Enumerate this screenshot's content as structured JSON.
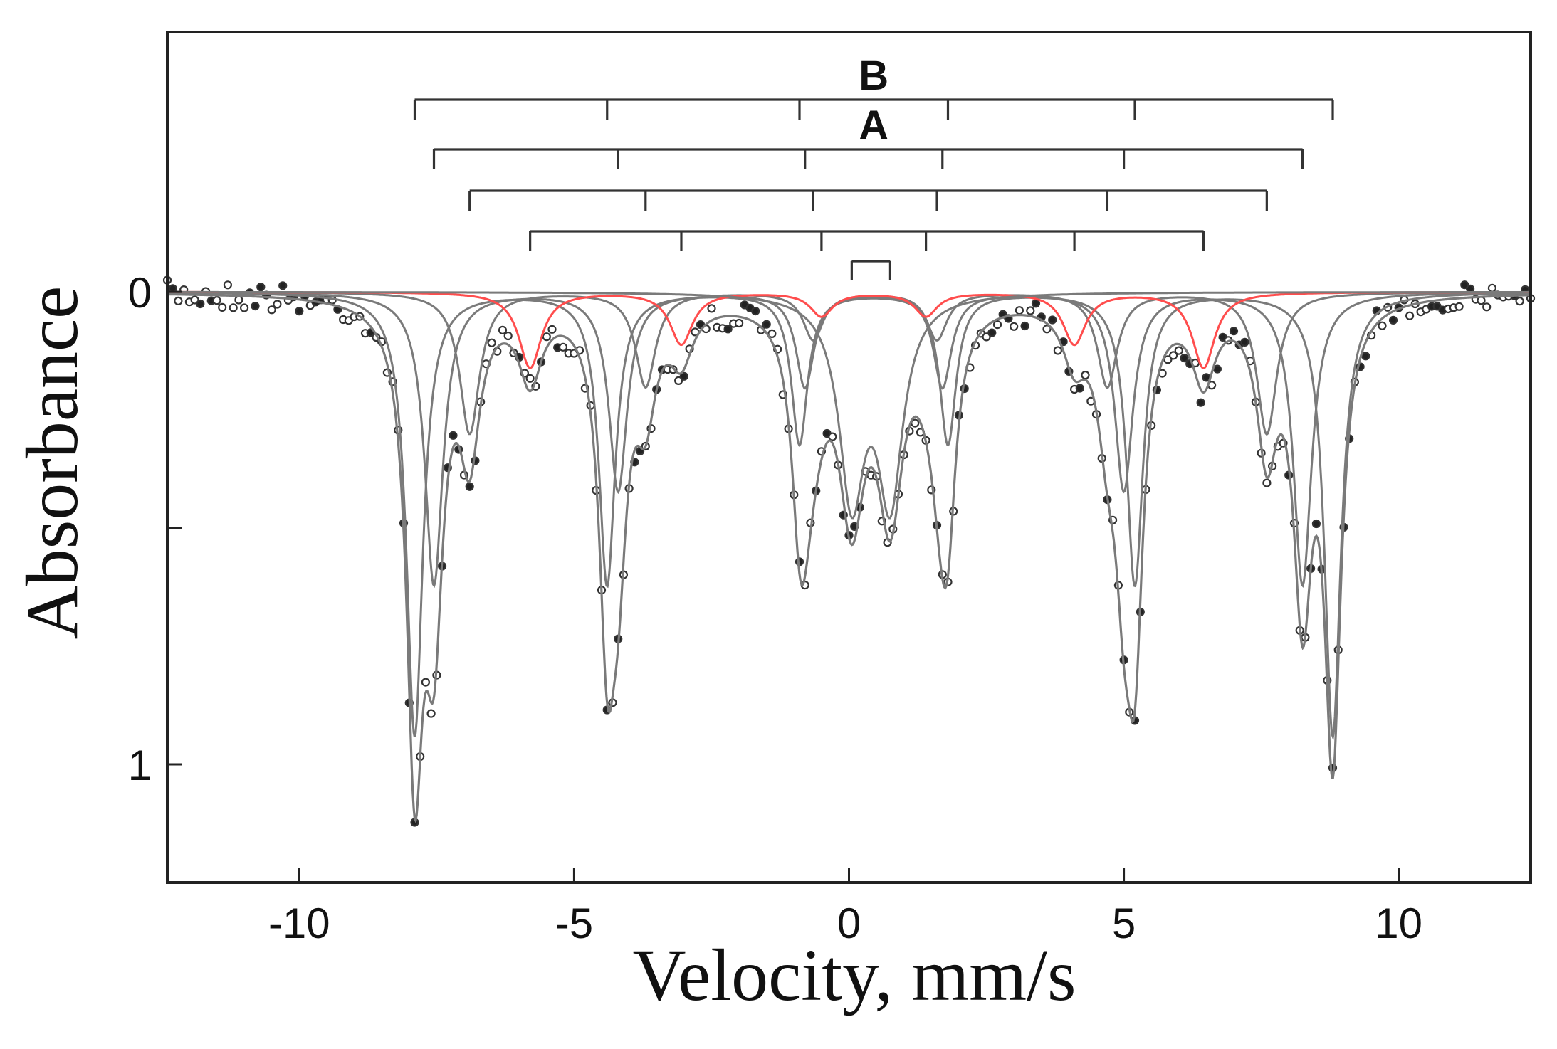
{
  "chart_data": {
    "type": "line",
    "title": "",
    "xlabel": "Velocity, mm/s",
    "ylabel": "Absorbance",
    "xlim": [
      -12.4,
      12.4
    ],
    "ylim": [
      -0.55,
      1.25
    ],
    "y_inverted": true,
    "x_ticks": [
      -10,
      -5,
      0,
      5,
      10
    ],
    "x_tick_labels": [
      "-10",
      "-5",
      "0",
      "5",
      "10"
    ],
    "y_ticks": [
      0,
      0.5,
      1
    ],
    "y_tick_labels": [
      "0",
      "",
      "1"
    ],
    "grid": false,
    "legend": "none",
    "colors": {
      "fit": "#7a7a7a",
      "doublet_fit": "#ff4d4d",
      "data": "#333333",
      "frame": "#222222"
    },
    "sextet_sticks": [
      {
        "name": "B",
        "label_at": 0.5,
        "lines": [
          -7.9,
          -4.4,
          -0.9,
          1.8,
          5.2,
          8.8
        ]
      },
      {
        "name": "A",
        "label_at": 0.5,
        "lines": [
          -7.55,
          -4.2,
          -0.8,
          1.7,
          5.0,
          8.25
        ]
      },
      {
        "name": "",
        "label_at": null,
        "lines": [
          -6.9,
          -3.7,
          -0.65,
          1.6,
          4.7,
          7.6
        ]
      },
      {
        "name": "",
        "label_at": null,
        "lines": [
          -5.8,
          -3.05,
          -0.5,
          1.4,
          4.1,
          6.45
        ]
      }
    ],
    "doublet_stick": [
      0.05,
      0.75
    ],
    "components": [
      {
        "kind": "sextet",
        "centers": [
          -7.9,
          -4.4,
          -0.9,
          1.8,
          5.2,
          8.8
        ],
        "depths": [
          0.94,
          0.62,
          0.32,
          0.32,
          0.62,
          0.94
        ],
        "hwhm": 0.18,
        "color_key": "fit"
      },
      {
        "kind": "sextet",
        "centers": [
          -7.55,
          -4.2,
          -0.8,
          1.7,
          5.0,
          8.25
        ],
        "depths": [
          0.62,
          0.42,
          0.2,
          0.2,
          0.42,
          0.62
        ],
        "hwhm": 0.2,
        "color_key": "fit"
      },
      {
        "kind": "sextet",
        "centers": [
          -6.9,
          -3.7,
          -0.65,
          1.6,
          4.7,
          7.6
        ],
        "depths": [
          0.3,
          0.2,
          0.1,
          0.1,
          0.2,
          0.3
        ],
        "hwhm": 0.22,
        "color_key": "fit"
      },
      {
        "kind": "sextet",
        "centers": [
          -5.8,
          -3.05,
          -0.5,
          1.4,
          4.1,
          6.45
        ],
        "depths": [
          0.16,
          0.11,
          0.05,
          0.05,
          0.11,
          0.16
        ],
        "hwhm": 0.25,
        "color_key": "doublet_fit"
      },
      {
        "kind": "doublet",
        "centers": [
          0.05,
          0.75
        ],
        "depths": [
          0.42,
          0.42
        ],
        "hwhm": 0.28,
        "color_key": "fit"
      }
    ],
    "envelope": {
      "label": "",
      "color_key": "fit",
      "offset_scale": 1.0
    },
    "measured_points": {
      "x_range": [
        -12.4,
        12.4
      ],
      "step": 0.1,
      "noise": 0.03,
      "marker": "circle"
    }
  }
}
